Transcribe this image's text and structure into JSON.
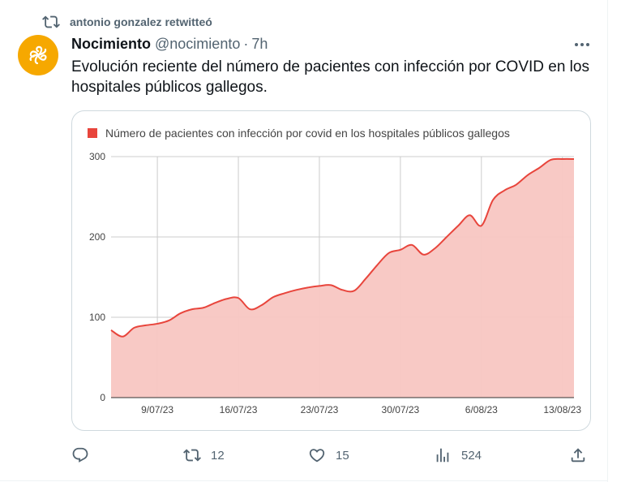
{
  "retweet": {
    "icon": "retweet-icon",
    "text": "antonio gonzalez retwitteó"
  },
  "tweet": {
    "author_name": "Nocimiento",
    "author_handle": "@nocimiento",
    "separator": "·",
    "time": "7h",
    "text": "Evolución reciente del número de pacientes con infección por COVID en los hospitales públicos gallegos."
  },
  "actions": {
    "reply_count": "",
    "retweet_count": "12",
    "like_count": "15",
    "views_count": "524"
  },
  "colors": {
    "series": "#e8453c",
    "fill": "#f8c6c2",
    "avatar": "#f6a800",
    "muted": "#536471"
  },
  "chart_data": {
    "type": "area",
    "title": "",
    "xlabel": "",
    "ylabel": "",
    "legend": {
      "position": "top-left",
      "label": "Número de pacientes con infección por covid en los hospitales públicos gallegos"
    },
    "ylim": [
      0,
      300
    ],
    "yticks": [
      "0",
      "100",
      "200",
      "300"
    ],
    "xticks": [
      "9/07/23",
      "16/07/23",
      "23/07/23",
      "30/07/23",
      "6/08/23",
      "13/08/23"
    ],
    "grid": true,
    "series": [
      {
        "name": "Número de pacientes con infección por covid en los hospitales públicos gallegos",
        "x": [
          "5/07/23",
          "6/07/23",
          "7/07/23",
          "8/07/23",
          "9/07/23",
          "10/07/23",
          "11/07/23",
          "12/07/23",
          "13/07/23",
          "14/07/23",
          "15/07/23",
          "16/07/23",
          "17/07/23",
          "18/07/23",
          "19/07/23",
          "20/07/23",
          "21/07/23",
          "22/07/23",
          "23/07/23",
          "24/07/23",
          "25/07/23",
          "26/07/23",
          "27/07/23",
          "28/07/23",
          "29/07/23",
          "30/07/23",
          "31/07/23",
          "1/08/23",
          "2/08/23",
          "3/08/23",
          "4/08/23",
          "5/08/23",
          "6/08/23",
          "7/08/23",
          "8/08/23",
          "9/08/23",
          "10/08/23",
          "11/08/23",
          "12/08/23",
          "13/08/23",
          "14/08/23"
        ],
        "values": [
          84,
          76,
          87,
          90,
          92,
          96,
          105,
          110,
          112,
          118,
          123,
          124,
          110,
          115,
          125,
          130,
          134,
          137,
          139,
          140,
          134,
          133,
          148,
          165,
          180,
          184,
          190,
          178,
          186,
          200,
          214,
          227,
          214,
          246,
          258,
          265,
          277,
          286,
          296,
          297,
          297
        ]
      }
    ]
  }
}
